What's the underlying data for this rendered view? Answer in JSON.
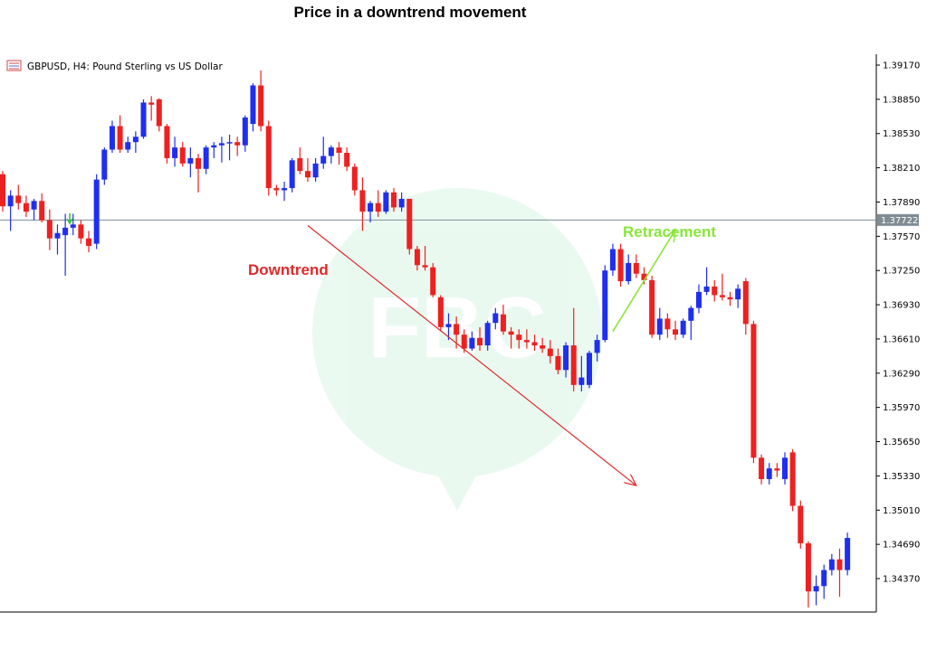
{
  "page": {
    "title": "Price in a downtrend movement"
  },
  "chart_data": {
    "type": "candlestick",
    "symbol_label": "GBPUSD, H4:  Pound Sterling vs US Dollar",
    "ylim": [
      1.3405,
      1.3935
    ],
    "y_ticks": [
      "1.39170",
      "1.38850",
      "1.38530",
      "1.38210",
      "1.37890",
      "1.37570",
      "1.37250",
      "1.36930",
      "1.36610",
      "1.36290",
      "1.35970",
      "1.35650",
      "1.35330",
      "1.35010",
      "1.34690",
      "1.34370"
    ],
    "current_price": {
      "value": 1.37722,
      "label": "1.37722"
    },
    "annotations": [
      {
        "text": "Downtrend",
        "color": "#dd2a2a"
      },
      {
        "text": "Retracement",
        "color": "#88e63a"
      }
    ],
    "downtrend_arrow": {
      "from": [
        39,
        1.3767
      ],
      "to": [
        81,
        1.3524
      ],
      "color": "#dd2a2a"
    },
    "retracement_arrow": {
      "from": [
        78,
        1.3668
      ],
      "to": [
        86,
        1.3763
      ],
      "color": "#88e63a"
    },
    "colors": {
      "bull": "#1f2ff0",
      "bear": "#ef2020",
      "grid_line": "#7f8c94"
    },
    "candles": [
      [
        1.3815,
        1.3818,
        1.378,
        1.3785
      ],
      [
        1.3785,
        1.38,
        1.3762,
        1.3795
      ],
      [
        1.3795,
        1.3805,
        1.3782,
        1.3788
      ],
      [
        1.3788,
        1.3795,
        1.3775,
        1.378
      ],
      [
        1.3782,
        1.3792,
        1.3772,
        1.379
      ],
      [
        1.379,
        1.3797,
        1.377,
        1.3772
      ],
      [
        1.3772,
        1.3782,
        1.3744,
        1.3755
      ],
      [
        1.3755,
        1.3768,
        1.374,
        1.376
      ],
      [
        1.3758,
        1.3778,
        1.372,
        1.3765
      ],
      [
        1.3765,
        1.3778,
        1.3758,
        1.3768
      ],
      [
        1.3768,
        1.3772,
        1.375,
        1.3755
      ],
      [
        1.3755,
        1.3762,
        1.3742,
        1.3748
      ],
      [
        1.375,
        1.3815,
        1.3745,
        1.381
      ],
      [
        1.381,
        1.384,
        1.3805,
        1.3838
      ],
      [
        1.3838,
        1.3865,
        1.3835,
        1.386
      ],
      [
        1.386,
        1.387,
        1.3835,
        1.3838
      ],
      [
        1.3838,
        1.385,
        1.3835,
        1.3845
      ],
      [
        1.3845,
        1.3855,
        1.3835,
        1.385
      ],
      [
        1.385,
        1.3885,
        1.3848,
        1.3882
      ],
      [
        1.3882,
        1.3888,
        1.3865,
        1.388
      ],
      [
        1.3885,
        1.3886,
        1.3855,
        1.386
      ],
      [
        1.386,
        1.3862,
        1.3825,
        1.383
      ],
      [
        1.383,
        1.385,
        1.3822,
        1.384
      ],
      [
        1.384,
        1.3845,
        1.3822,
        1.3825
      ],
      [
        1.3825,
        1.384,
        1.3812,
        1.383
      ],
      [
        1.383,
        1.3834,
        1.3798,
        1.382
      ],
      [
        1.382,
        1.3842,
        1.3815,
        1.384
      ],
      [
        1.384,
        1.3845,
        1.383,
        1.3842
      ],
      [
        1.3842,
        1.385,
        1.3826,
        1.3844
      ],
      [
        1.3844,
        1.3852,
        1.3828,
        1.3845
      ],
      [
        1.3845,
        1.385,
        1.3832,
        1.3842
      ],
      [
        1.3842,
        1.387,
        1.3836,
        1.3868
      ],
      [
        1.3862,
        1.39,
        1.3855,
        1.3898
      ],
      [
        1.3898,
        1.3912,
        1.3855,
        1.386
      ],
      [
        1.386,
        1.3865,
        1.3795,
        1.3802
      ],
      [
        1.3802,
        1.3805,
        1.3795,
        1.38
      ],
      [
        1.38,
        1.3808,
        1.379,
        1.3802
      ],
      [
        1.3802,
        1.383,
        1.3798,
        1.3828
      ],
      [
        1.383,
        1.384,
        1.3815,
        1.3818
      ],
      [
        1.3818,
        1.383,
        1.3808,
        1.3812
      ],
      [
        1.3812,
        1.383,
        1.3808,
        1.3825
      ],
      [
        1.3825,
        1.385,
        1.382,
        1.3832
      ],
      [
        1.3832,
        1.3842,
        1.3825,
        1.384
      ],
      [
        1.384,
        1.3845,
        1.3824,
        1.3835
      ],
      [
        1.3835,
        1.384,
        1.3818,
        1.3822
      ],
      [
        1.3822,
        1.3825,
        1.3795,
        1.38
      ],
      [
        1.38,
        1.3812,
        1.3762,
        1.378
      ],
      [
        1.378,
        1.379,
        1.377,
        1.3788
      ],
      [
        1.3788,
        1.38,
        1.3775,
        1.378
      ],
      [
        1.378,
        1.38,
        1.3778,
        1.3798
      ],
      [
        1.3798,
        1.3802,
        1.378,
        1.3784
      ],
      [
        1.3784,
        1.3798,
        1.378,
        1.3792
      ],
      [
        1.3792,
        1.3792,
        1.374,
        1.3745
      ],
      [
        1.3745,
        1.3748,
        1.3725,
        1.373
      ],
      [
        1.373,
        1.3748,
        1.3725,
        1.3728
      ],
      [
        1.3728,
        1.3732,
        1.37,
        1.3702
      ],
      [
        1.37,
        1.3702,
        1.3668,
        1.3672
      ],
      [
        1.3672,
        1.3685,
        1.366,
        1.3675
      ],
      [
        1.3675,
        1.3682,
        1.3652,
        1.3665
      ],
      [
        1.3665,
        1.367,
        1.3648,
        1.3652
      ],
      [
        1.3652,
        1.3668,
        1.365,
        1.3662
      ],
      [
        1.3662,
        1.3672,
        1.365,
        1.3655
      ],
      [
        1.3655,
        1.3678,
        1.365,
        1.3676
      ],
      [
        1.3676,
        1.369,
        1.367,
        1.3685
      ],
      [
        1.3684,
        1.3693,
        1.3665,
        1.3668
      ],
      [
        1.3668,
        1.3672,
        1.3652,
        1.3665
      ],
      [
        1.3665,
        1.367,
        1.3652,
        1.366
      ],
      [
        1.366,
        1.367,
        1.3652,
        1.3658
      ],
      [
        1.3658,
        1.3665,
        1.365,
        1.3655
      ],
      [
        1.3655,
        1.3662,
        1.3648,
        1.3652
      ],
      [
        1.3652,
        1.366,
        1.3638,
        1.3645
      ],
      [
        1.3645,
        1.3652,
        1.3628,
        1.3632
      ],
      [
        1.3632,
        1.3658,
        1.3625,
        1.3655
      ],
      [
        1.3655,
        1.369,
        1.3612,
        1.3618
      ],
      [
        1.3618,
        1.3645,
        1.3612,
        1.3625
      ],
      [
        1.3618,
        1.365,
        1.3615,
        1.3648
      ],
      [
        1.3648,
        1.3665,
        1.364,
        1.366
      ],
      [
        1.366,
        1.373,
        1.3658,
        1.3725
      ],
      [
        1.3725,
        1.375,
        1.372,
        1.3745
      ],
      [
        1.3745,
        1.375,
        1.371,
        1.3715
      ],
      [
        1.3715,
        1.374,
        1.3712,
        1.3732
      ],
      [
        1.3732,
        1.374,
        1.3718,
        1.3722
      ],
      [
        1.3722,
        1.3728,
        1.3712,
        1.3716
      ],
      [
        1.3716,
        1.372,
        1.3662,
        1.3665
      ],
      [
        1.3665,
        1.369,
        1.366,
        1.368
      ],
      [
        1.368,
        1.3685,
        1.3662,
        1.367
      ],
      [
        1.367,
        1.3678,
        1.366,
        1.3665
      ],
      [
        1.3665,
        1.368,
        1.3662,
        1.3678
      ],
      [
        1.3678,
        1.3692,
        1.366,
        1.369
      ],
      [
        1.369,
        1.3712,
        1.3685,
        1.3705
      ],
      [
        1.3705,
        1.3728,
        1.3702,
        1.371
      ],
      [
        1.371,
        1.3716,
        1.3696,
        1.3702
      ],
      [
        1.3702,
        1.3722,
        1.3697,
        1.37
      ],
      [
        1.37,
        1.3705,
        1.3692,
        1.3698
      ],
      [
        1.3698,
        1.3712,
        1.369,
        1.3708
      ],
      [
        1.3715,
        1.3718,
        1.3665,
        1.3675
      ],
      [
        1.3675,
        1.3678,
        1.3545,
        1.355
      ],
      [
        1.355,
        1.3553,
        1.3525,
        1.353
      ],
      [
        1.353,
        1.3545,
        1.3525,
        1.354
      ],
      [
        1.354,
        1.3545,
        1.3532,
        1.3538
      ],
      [
        1.353,
        1.3555,
        1.3525,
        1.355
      ],
      [
        1.3555,
        1.3558,
        1.35,
        1.3505
      ],
      [
        1.3505,
        1.351,
        1.3465,
        1.347
      ],
      [
        1.347,
        1.3472,
        1.341,
        1.3425
      ],
      [
        1.3425,
        1.344,
        1.3412,
        1.343
      ],
      [
        1.343,
        1.345,
        1.3418,
        1.3445
      ],
      [
        1.3445,
        1.346,
        1.344,
        1.3455
      ],
      [
        1.3455,
        1.3465,
        1.342,
        1.3445
      ],
      [
        1.3445,
        1.348,
        1.344,
        1.3475
      ]
    ]
  }
}
